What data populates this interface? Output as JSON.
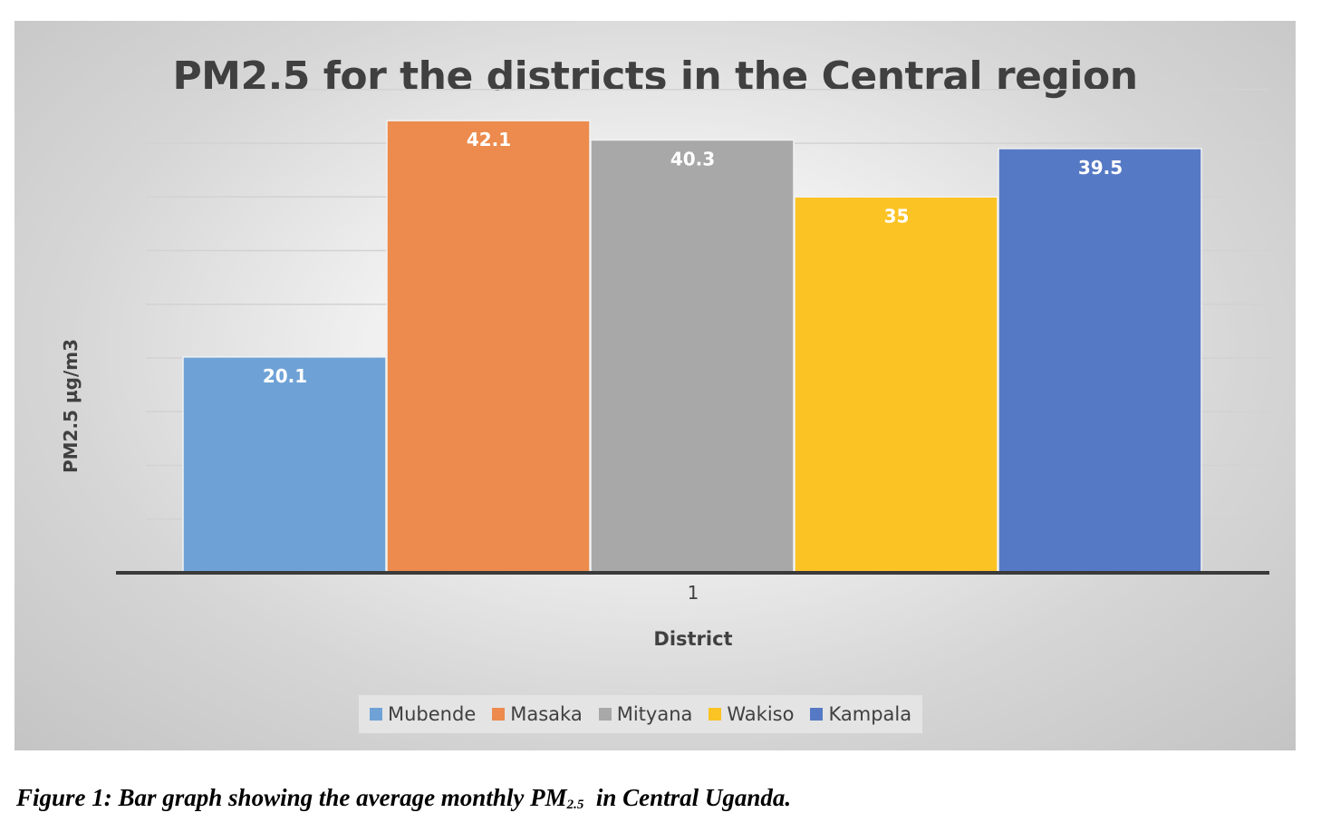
{
  "chart_data": {
    "type": "bar",
    "title": "PM2.5 for the districts in the Central region",
    "xlabel": "District",
    "ylabel": "PM2.5 µg/m3",
    "categories": [
      "1"
    ],
    "series": [
      {
        "name": "Mubende",
        "values": [
          20.1
        ],
        "color": "#6ea2d6"
      },
      {
        "name": "Masaka",
        "values": [
          42.1
        ],
        "color": "#ec8b4d"
      },
      {
        "name": "Mityana",
        "values": [
          40.3
        ],
        "color": "#a8a8a8"
      },
      {
        "name": "Wakiso",
        "values": [
          35
        ],
        "color": "#fbc324"
      },
      {
        "name": "Kampala",
        "values": [
          39.5
        ],
        "color": "#5579c4"
      }
    ],
    "ylim": [
      0,
      45
    ],
    "grid": true,
    "legend": "bottom",
    "data_labels": true
  },
  "caption": {
    "prefix": "Figure 1: Bar graph showing the average monthly PM",
    "subscript": "2.5",
    "suffix": "  in Central Uganda."
  }
}
